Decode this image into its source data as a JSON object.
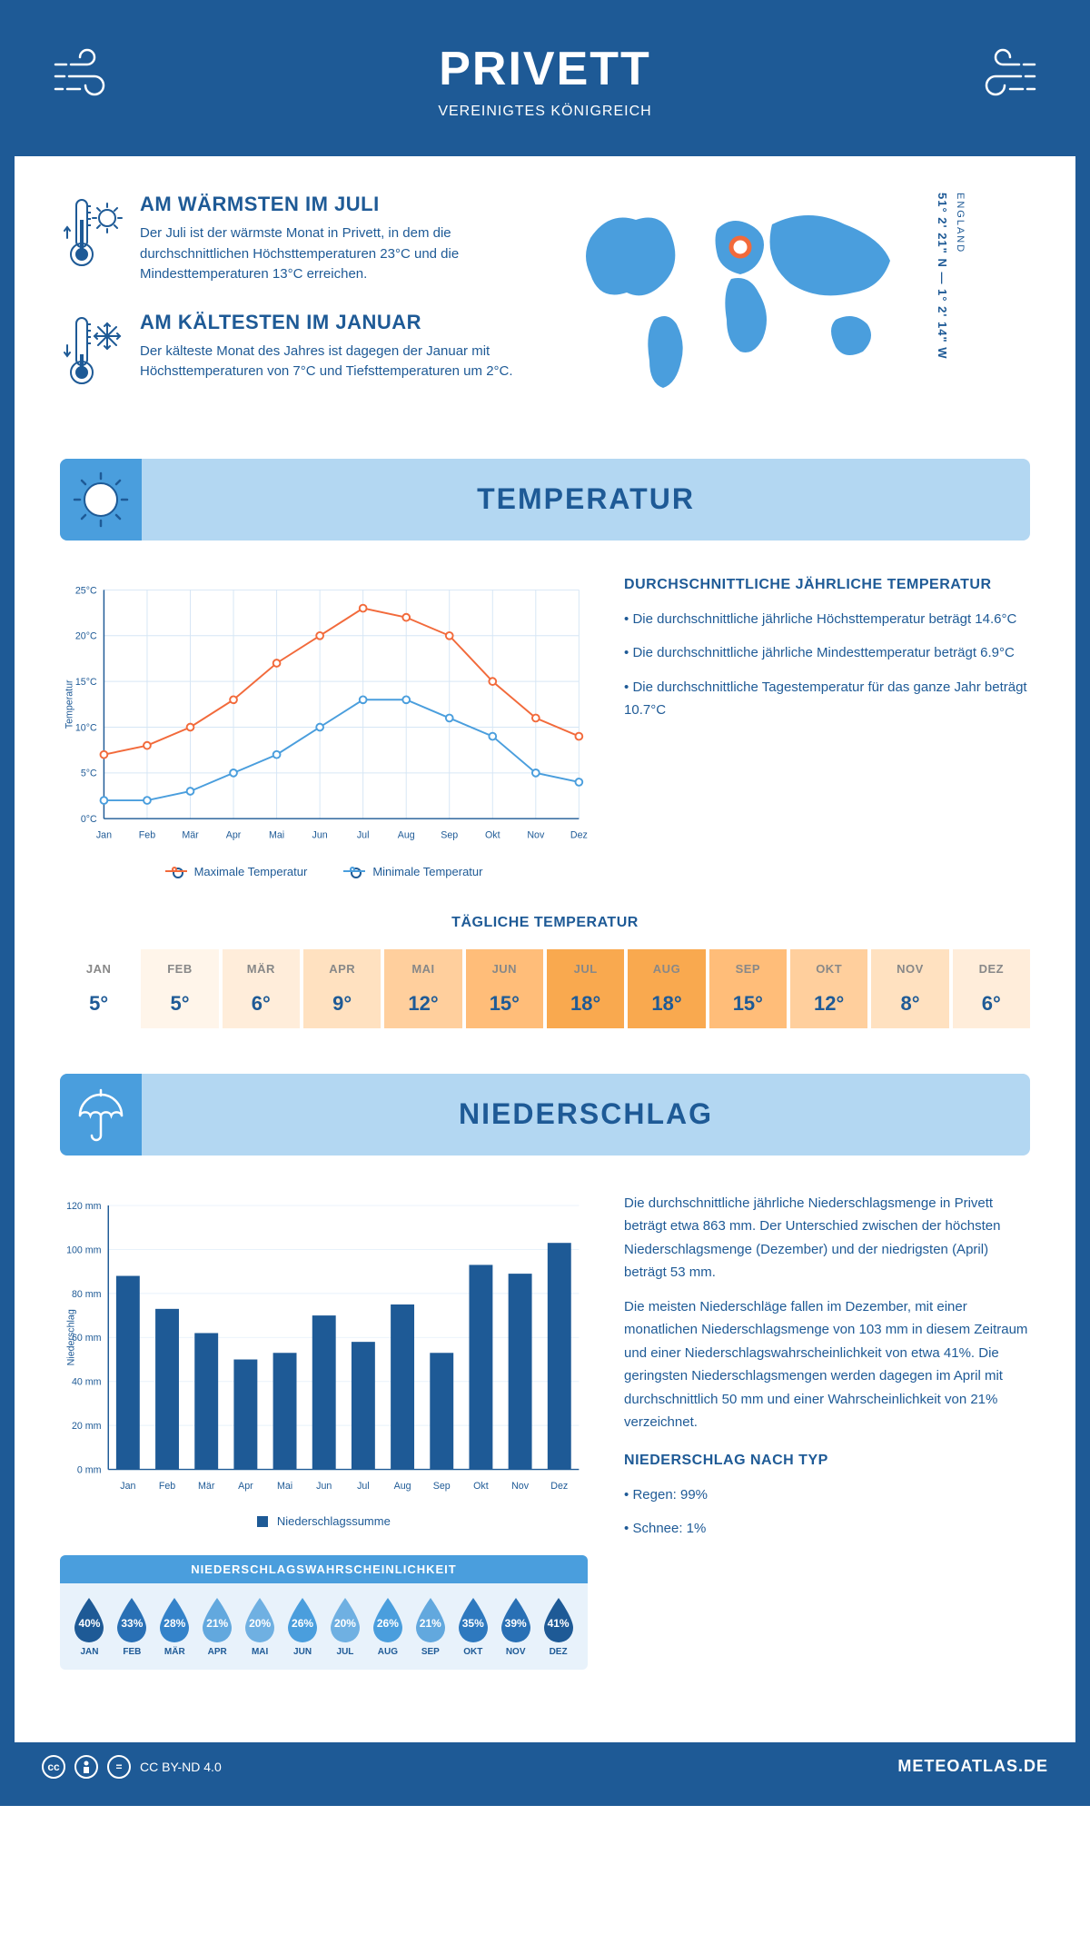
{
  "header": {
    "title": "PRIVETT",
    "subtitle": "VEREINIGTES KÖNIGREICH"
  },
  "facts": {
    "warm": {
      "title": "AM WÄRMSTEN IM JULI",
      "text": "Der Juli ist der wärmste Monat in Privett, in dem die durchschnittlichen Höchsttemperaturen 23°C und die Mindesttemperaturen 13°C erreichen."
    },
    "cold": {
      "title": "AM KÄLTESTEN IM JANUAR",
      "text": "Der kälteste Monat des Jahres ist dagegen der Januar mit Höchsttemperaturen von 7°C und Tiefsttemperaturen um 2°C."
    }
  },
  "coords": {
    "line": "51° 2' 21\" N — 1° 2' 14\" W",
    "country": "ENGLAND"
  },
  "sections": {
    "temp": "TEMPERATUR",
    "precip": "NIEDERSCHLAG"
  },
  "temp_chart": {
    "type": "line",
    "months": [
      "Jan",
      "Feb",
      "Mär",
      "Apr",
      "Mai",
      "Jun",
      "Jul",
      "Aug",
      "Sep",
      "Okt",
      "Nov",
      "Dez"
    ],
    "ylabel": "Temperatur",
    "ylim": [
      0,
      25
    ],
    "ytick_step": 5,
    "ytick_labels": [
      "0°C",
      "5°C",
      "10°C",
      "15°C",
      "20°C",
      "25°C"
    ],
    "max_series": {
      "color": "#f26a3b",
      "label": "Maximale Temperatur",
      "values": [
        7,
        8,
        10,
        13,
        17,
        20,
        23,
        22,
        20,
        15,
        11,
        9
      ]
    },
    "min_series": {
      "color": "#4a9edd",
      "label": "Minimale Temperatur",
      "values": [
        2,
        2,
        3,
        5,
        7,
        10,
        13,
        13,
        11,
        9,
        5,
        4
      ]
    },
    "grid_color": "#d6e6f5",
    "line_width": 2,
    "marker_size": 4
  },
  "temp_text": {
    "title": "DURCHSCHNITTLICHE JÄHRLICHE TEMPERATUR",
    "bullets": [
      "• Die durchschnittliche jährliche Höchsttemperatur beträgt 14.6°C",
      "• Die durchschnittliche jährliche Mindesttemperatur beträgt 6.9°C",
      "• Die durchschnittliche Tagestemperatur für das ganze Jahr beträgt 10.7°C"
    ]
  },
  "daily_temp": {
    "title": "TÄGLICHE TEMPERATUR",
    "months": [
      "JAN",
      "FEB",
      "MÄR",
      "APR",
      "MAI",
      "JUN",
      "JUL",
      "AUG",
      "SEP",
      "OKT",
      "NOV",
      "DEZ"
    ],
    "values": [
      "5°",
      "5°",
      "6°",
      "9°",
      "12°",
      "15°",
      "18°",
      "18°",
      "15°",
      "12°",
      "8°",
      "6°"
    ],
    "bg_colors": [
      "#ffffff",
      "#fff5ea",
      "#ffedda",
      "#ffe1c0",
      "#ffcf9d",
      "#ffbd79",
      "#f9a94f",
      "#f9a94f",
      "#ffbd79",
      "#ffcf9d",
      "#ffe1c0",
      "#ffedda"
    ]
  },
  "precip_chart": {
    "type": "bar",
    "months": [
      "Jan",
      "Feb",
      "Mär",
      "Apr",
      "Mai",
      "Jun",
      "Jul",
      "Aug",
      "Sep",
      "Okt",
      "Nov",
      "Dez"
    ],
    "ylabel": "Niederschlag",
    "ylim": [
      0,
      120
    ],
    "ytick_step": 20,
    "ytick_labels": [
      "0 mm",
      "20 mm",
      "40 mm",
      "60 mm",
      "80 mm",
      "100 mm",
      "120 mm"
    ],
    "values": [
      88,
      73,
      62,
      50,
      53,
      70,
      58,
      75,
      53,
      93,
      89,
      103
    ],
    "bar_color": "#1e5a96",
    "grid_color": "#e8f2fb",
    "legend": "Niederschlagssumme"
  },
  "precip_text": {
    "p1": "Die durchschnittliche jährliche Niederschlagsmenge in Privett beträgt etwa 863 mm. Der Unterschied zwischen der höchsten Niederschlagsmenge (Dezember) und der niedrigsten (April) beträgt 53 mm.",
    "p2": "Die meisten Niederschläge fallen im Dezember, mit einer monatlichen Niederschlagsmenge von 103 mm in diesem Zeitraum und einer Niederschlagswahrscheinlichkeit von etwa 41%. Die geringsten Niederschlagsmengen werden dagegen im April mit durchschnittlich 50 mm und einer Wahrscheinlichkeit von 21% verzeichnet.",
    "type_title": "NIEDERSCHLAG NACH TYP",
    "type_bullets": [
      "• Regen: 99%",
      "• Schnee: 1%"
    ]
  },
  "precip_prob": {
    "title": "NIEDERSCHLAGSWAHRSCHEINLICHKEIT",
    "months": [
      "JAN",
      "FEB",
      "MÄR",
      "APR",
      "MAI",
      "JUN",
      "JUL",
      "AUG",
      "SEP",
      "OKT",
      "NOV",
      "DEZ"
    ],
    "values": [
      "40%",
      "33%",
      "28%",
      "21%",
      "20%",
      "26%",
      "20%",
      "26%",
      "21%",
      "35%",
      "39%",
      "41%"
    ],
    "colors": [
      "#1e5a96",
      "#2970b5",
      "#3483ca",
      "#62a8de",
      "#6fb0e2",
      "#4a9edd",
      "#6fb0e2",
      "#4a9edd",
      "#62a8de",
      "#2e79bf",
      "#2970b5",
      "#1e5a96"
    ]
  },
  "footer": {
    "license": "CC BY-ND 4.0",
    "brand": "METEOATLAS.DE"
  },
  "colors": {
    "primary": "#1e5a96",
    "light_blue": "#4a9edd",
    "pale_blue": "#b3d7f2"
  }
}
